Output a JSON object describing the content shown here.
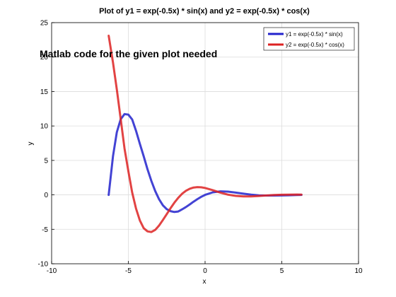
{
  "chart_data": {
    "type": "line",
    "title": "Plot of y1 = exp(-0.5x) * sin(x) and y2 = exp(-0.5x) * cos(x)",
    "xlabel": "x",
    "ylabel": "y",
    "xlim": [
      -10,
      10
    ],
    "ylim": [
      -10,
      25
    ],
    "xticks": [
      -10,
      -5,
      0,
      5,
      10
    ],
    "yticks": [
      -10,
      -5,
      0,
      5,
      10,
      15,
      20,
      25
    ],
    "grid": true,
    "legend_position": "top-right",
    "annotation": "Matlab code for the given plot needed",
    "series": [
      {
        "name": "y1 = exp(-0.5x) * sin(x)",
        "color": "#2222cc",
        "x": [
          -6.28,
          -6.0,
          -5.75,
          -5.5,
          -5.25,
          -5.0,
          -4.75,
          -4.5,
          -4.25,
          -4.0,
          -3.75,
          -3.5,
          -3.25,
          -3.0,
          -2.75,
          -2.5,
          -2.25,
          -2.0,
          -1.75,
          -1.5,
          -1.25,
          -1.0,
          -0.75,
          -0.5,
          -0.25,
          0.0,
          0.5,
          1.0,
          1.5,
          2.0,
          2.5,
          3.0,
          3.5,
          4.0,
          4.5,
          5.0,
          5.5,
          6.0,
          6.28
        ],
        "y": [
          0.0,
          5.62,
          9.09,
          10.98,
          11.73,
          11.65,
          10.95,
          9.29,
          7.41,
          5.6,
          3.71,
          2.01,
          0.55,
          -0.63,
          -1.51,
          -2.08,
          -2.36,
          -2.49,
          -2.42,
          -2.11,
          -1.77,
          -1.39,
          -0.99,
          -0.62,
          -0.28,
          0.0,
          0.37,
          0.51,
          0.47,
          0.33,
          0.17,
          0.03,
          -0.06,
          -0.1,
          -0.1,
          -0.08,
          -0.05,
          -0.01,
          0.0
        ]
      },
      {
        "name": "y2 = exp(-0.5x) * cos(x)",
        "color": "#dd2222",
        "x": [
          -6.28,
          -6.0,
          -5.75,
          -5.5,
          -5.25,
          -5.0,
          -4.75,
          -4.5,
          -4.25,
          -4.0,
          -3.75,
          -3.5,
          -3.25,
          -3.0,
          -2.75,
          -2.5,
          -2.25,
          -2.0,
          -1.75,
          -1.5,
          -1.25,
          -1.0,
          -0.75,
          -0.5,
          -0.25,
          0.0,
          0.5,
          1.0,
          1.5,
          2.0,
          2.5,
          3.0,
          3.5,
          4.0,
          4.5,
          5.0,
          5.5,
          6.0,
          6.28
        ],
        "y": [
          23.1,
          19.2,
          15.3,
          11.0,
          6.72,
          3.45,
          0.36,
          -2.0,
          -3.72,
          -4.84,
          -5.3,
          -5.39,
          -5.08,
          -4.46,
          -3.66,
          -2.79,
          -1.93,
          -1.13,
          -0.43,
          0.15,
          0.59,
          0.89,
          1.06,
          1.13,
          1.1,
          1.0,
          0.68,
          0.33,
          0.03,
          -0.15,
          -0.23,
          -0.22,
          -0.16,
          -0.09,
          -0.02,
          0.02,
          0.04,
          0.05,
          0.04
        ]
      }
    ]
  }
}
